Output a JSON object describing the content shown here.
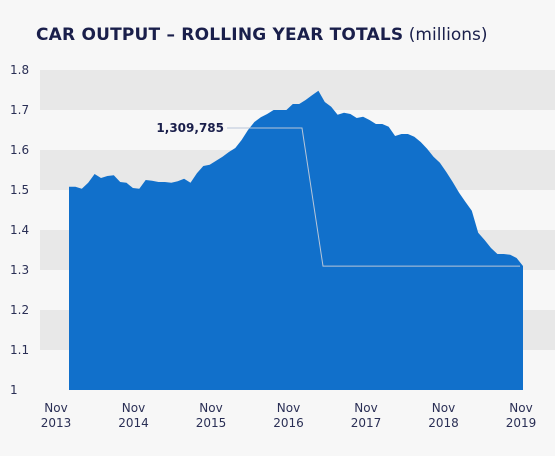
{
  "title": {
    "main": "CAR OUTPUT – ROLLING YEAR TOTALS",
    "unit": "(millions)"
  },
  "colors": {
    "area": "#1170cb",
    "band": "#e8e8e8",
    "background": "#f7f7f7",
    "text": "#1a1f4b"
  },
  "chart_data": {
    "type": "area",
    "title": "CAR OUTPUT – ROLLING YEAR TOTALS (millions)",
    "xlabel": "",
    "ylabel": "",
    "ylim": [
      1,
      1.8
    ],
    "yticks": [
      "1",
      "1.1",
      "1.2",
      "1.3",
      "1.4",
      "1.5",
      "1.6",
      "1.7",
      "1.8"
    ],
    "xticks": [
      {
        "month": "Nov",
        "year": "2013"
      },
      {
        "month": "Nov",
        "year": "2014"
      },
      {
        "month": "Nov",
        "year": "2015"
      },
      {
        "month": "Nov",
        "year": "2016"
      },
      {
        "month": "Nov",
        "year": "2017"
      },
      {
        "month": "Nov",
        "year": "2018"
      },
      {
        "month": "Nov",
        "year": "2019"
      }
    ],
    "x_start": "2013-11",
    "x_end": "2019-11",
    "grid": "alternating horizontal bands",
    "values": [
      1.508,
      1.508,
      1.503,
      1.518,
      1.54,
      1.53,
      1.535,
      1.537,
      1.52,
      1.518,
      1.505,
      1.503,
      1.525,
      1.523,
      1.52,
      1.52,
      1.518,
      1.522,
      1.528,
      1.518,
      1.542,
      1.56,
      1.563,
      1.573,
      1.583,
      1.595,
      1.605,
      1.625,
      1.65,
      1.67,
      1.682,
      1.69,
      1.7,
      1.7,
      1.7,
      1.715,
      1.715,
      1.725,
      1.737,
      1.748,
      1.72,
      1.708,
      1.688,
      1.693,
      1.69,
      1.68,
      1.683,
      1.675,
      1.665,
      1.665,
      1.658,
      1.635,
      1.64,
      1.64,
      1.633,
      1.62,
      1.603,
      1.583,
      1.568,
      1.545,
      1.52,
      1.493,
      1.47,
      1.448,
      1.393,
      1.375,
      1.355,
      1.34,
      1.34,
      1.338,
      1.33,
      1.31
    ],
    "annotation": {
      "label": "1,309,785",
      "value": 1.309785
    }
  }
}
